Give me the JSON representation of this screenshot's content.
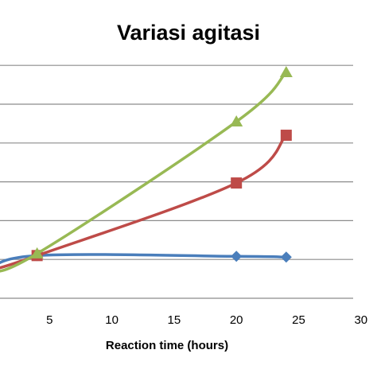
{
  "chart_data": {
    "type": "line",
    "title": "Variasi agitasi",
    "xlabel": "Reaction time (hours)",
    "ylabel": "",
    "xlim": [
      0,
      30
    ],
    "xticks": [
      5,
      10,
      15,
      20,
      25,
      30
    ],
    "ylim": [
      0,
      7
    ],
    "grid": true,
    "series": [
      {
        "color": "#4a7ebb",
        "marker": "diamond",
        "x": [
          0,
          4,
          20,
          24
        ],
        "y": [
          0.7,
          1.1,
          1.08,
          1.06
        ]
      },
      {
        "color": "#be4b48",
        "marker": "square",
        "x": [
          0,
          4,
          20,
          24
        ],
        "y": [
          0.7,
          1.1,
          2.97,
          4.2
        ]
      },
      {
        "color": "#98b954",
        "marker": "triangle",
        "x": [
          0,
          4,
          20,
          24
        ],
        "y": [
          0.7,
          1.15,
          4.55,
          5.82
        ]
      }
    ]
  }
}
